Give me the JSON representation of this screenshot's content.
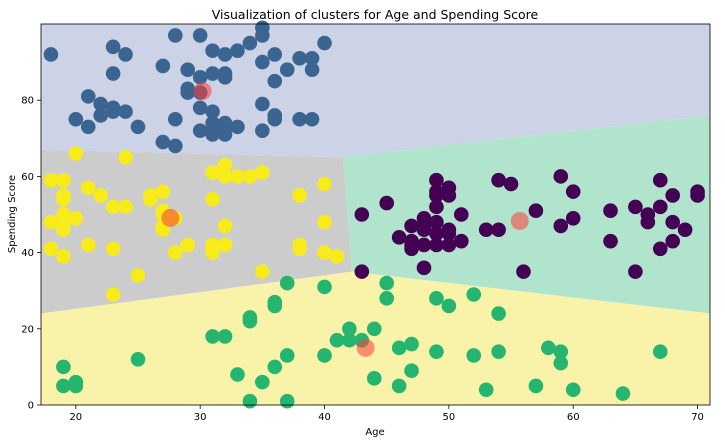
{
  "chart_data": {
    "type": "scatter",
    "title": "Visualization of clusters for Age and Spending Score",
    "xlabel": "Age",
    "ylabel": "Spending Score",
    "xlim": [
      17.2,
      71
    ],
    "ylim": [
      0,
      100
    ],
    "xticks": [
      20,
      30,
      40,
      50,
      60,
      70
    ],
    "yticks": [
      0,
      20,
      40,
      60,
      80
    ],
    "grid": false,
    "legend": "none",
    "colors": {
      "region_blue": "#ccd3e7",
      "region_gray": "#cccccc",
      "region_green": "#b1e4cc",
      "region_yellow": "#f9f3aa",
      "pts_blue": "#3b6590",
      "pts_gray": "#f7ec1a",
      "pts_green": "#26b56e",
      "pts_purple": "#440154",
      "centroid": "#ff3b3b"
    },
    "regions": [
      {
        "cluster": "blue",
        "polygon": [
          [
            17.2,
            100
          ],
          [
            71,
            100
          ],
          [
            71,
            76
          ],
          [
            41.5,
            65
          ],
          [
            17.2,
            67
          ]
        ]
      },
      {
        "cluster": "gray",
        "polygon": [
          [
            17.2,
            67
          ],
          [
            41.5,
            65
          ],
          [
            42.2,
            35
          ],
          [
            17.2,
            24
          ]
        ]
      },
      {
        "cluster": "green",
        "polygon": [
          [
            41.5,
            65
          ],
          [
            71,
            76
          ],
          [
            71,
            24
          ],
          [
            42.2,
            35
          ]
        ]
      },
      {
        "cluster": "yellow",
        "polygon": [
          [
            17.2,
            24
          ],
          [
            42.2,
            35
          ],
          [
            71,
            24
          ],
          [
            71,
            0
          ],
          [
            17.2,
            0
          ]
        ]
      }
    ],
    "series": [
      {
        "cluster": "blue",
        "points": [
          [
            18,
            92
          ],
          [
            23,
            94
          ],
          [
            24,
            92
          ],
          [
            28,
            97
          ],
          [
            30,
            97
          ],
          [
            31,
            93
          ],
          [
            32,
            92
          ],
          [
            33,
            93
          ],
          [
            34,
            95
          ],
          [
            35,
            99
          ],
          [
            35,
            97
          ],
          [
            36,
            92
          ],
          [
            38,
            91
          ],
          [
            39,
            91
          ],
          [
            39,
            88
          ],
          [
            40,
            95
          ],
          [
            27,
            89
          ],
          [
            29,
            88
          ],
          [
            31,
            87
          ],
          [
            32,
            87
          ],
          [
            32,
            86
          ],
          [
            23,
            87
          ],
          [
            30,
            86
          ],
          [
            29,
            83
          ],
          [
            29,
            82
          ],
          [
            30,
            82
          ],
          [
            30,
            78
          ],
          [
            31,
            77
          ],
          [
            35,
            90
          ],
          [
            36,
            85
          ],
          [
            21,
            81
          ],
          [
            22,
            79
          ],
          [
            20,
            75
          ],
          [
            21,
            73
          ],
          [
            22,
            76
          ],
          [
            23,
            77
          ],
          [
            23,
            78
          ],
          [
            24,
            77
          ],
          [
            25,
            73
          ],
          [
            28,
            75
          ],
          [
            30,
            72
          ],
          [
            31,
            74
          ],
          [
            31,
            72
          ],
          [
            32,
            73
          ],
          [
            32,
            74
          ],
          [
            32,
            71
          ],
          [
            33,
            73
          ],
          [
            35,
            79
          ],
          [
            35,
            72
          ],
          [
            36,
            76
          ],
          [
            36,
            75
          ],
          [
            38,
            75
          ],
          [
            39,
            75
          ],
          [
            27,
            69
          ],
          [
            28,
            68
          ],
          [
            37,
            88
          ],
          [
            31,
            71
          ]
        ]
      },
      {
        "cluster": "gray",
        "points": [
          [
            18,
            59
          ],
          [
            19,
            59
          ],
          [
            19,
            55
          ],
          [
            19,
            54
          ],
          [
            18,
            48
          ],
          [
            19,
            50
          ],
          [
            19,
            47
          ],
          [
            19,
            46
          ],
          [
            20,
            49
          ],
          [
            20,
            66
          ],
          [
            18,
            41
          ],
          [
            19,
            39
          ],
          [
            21,
            42
          ],
          [
            21,
            57
          ],
          [
            22,
            55
          ],
          [
            23,
            52
          ],
          [
            23,
            41
          ],
          [
            23,
            29
          ],
          [
            24,
            52
          ],
          [
            24,
            65
          ],
          [
            25,
            34
          ],
          [
            26,
            54
          ],
          [
            26,
            55
          ],
          [
            27,
            56
          ],
          [
            27,
            51
          ],
          [
            27,
            50
          ],
          [
            27,
            47
          ],
          [
            27,
            46
          ],
          [
            28,
            40
          ],
          [
            29,
            42
          ],
          [
            31,
            61
          ],
          [
            31,
            54
          ],
          [
            31,
            42
          ],
          [
            31,
            41
          ],
          [
            31,
            40
          ],
          [
            32,
            42
          ],
          [
            32,
            47
          ],
          [
            32,
            63
          ],
          [
            32,
            60
          ],
          [
            33,
            60
          ],
          [
            34,
            60
          ],
          [
            35,
            61
          ],
          [
            35,
            35
          ],
          [
            38,
            55
          ],
          [
            38,
            42
          ],
          [
            38,
            41
          ],
          [
            40,
            58
          ],
          [
            40,
            48
          ],
          [
            40,
            40
          ],
          [
            41,
            39
          ],
          [
            28,
            49
          ]
        ]
      },
      {
        "cluster": "purple",
        "points": [
          [
            43,
            50
          ],
          [
            43,
            35
          ],
          [
            45,
            53
          ],
          [
            46,
            44
          ],
          [
            47,
            47
          ],
          [
            47,
            43
          ],
          [
            47,
            42
          ],
          [
            47,
            41
          ],
          [
            48,
            46
          ],
          [
            48,
            47
          ],
          [
            48,
            49
          ],
          [
            48,
            42
          ],
          [
            48,
            36
          ],
          [
            49,
            59
          ],
          [
            49,
            56
          ],
          [
            49,
            55
          ],
          [
            49,
            52
          ],
          [
            49,
            48
          ],
          [
            49,
            45
          ],
          [
            49,
            42
          ],
          [
            50,
            57
          ],
          [
            50,
            55
          ],
          [
            50,
            46
          ],
          [
            50,
            45
          ],
          [
            50,
            42
          ],
          [
            51,
            50
          ],
          [
            51,
            43
          ],
          [
            53,
            46
          ],
          [
            54,
            46
          ],
          [
            54,
            59
          ],
          [
            55,
            58
          ],
          [
            56,
            35
          ],
          [
            57,
            51
          ],
          [
            59,
            60
          ],
          [
            59,
            47
          ],
          [
            60,
            49
          ],
          [
            60,
            56
          ],
          [
            63,
            51
          ],
          [
            63,
            43
          ],
          [
            65,
            52
          ],
          [
            65,
            35
          ],
          [
            66,
            50
          ],
          [
            66,
            48
          ],
          [
            67,
            59
          ],
          [
            67,
            52
          ],
          [
            67,
            41
          ],
          [
            68,
            55
          ],
          [
            68,
            48
          ],
          [
            68,
            43
          ],
          [
            69,
            46
          ],
          [
            70,
            56
          ],
          [
            70,
            55
          ]
        ]
      },
      {
        "cluster": "green",
        "points": [
          [
            19,
            10
          ],
          [
            19,
            5
          ],
          [
            20,
            6
          ],
          [
            20,
            5
          ],
          [
            25,
            12
          ],
          [
            31,
            18
          ],
          [
            32,
            18
          ],
          [
            33,
            8
          ],
          [
            34,
            23
          ],
          [
            34,
            22
          ],
          [
            34,
            1
          ],
          [
            35,
            6
          ],
          [
            36,
            10
          ],
          [
            36,
            27
          ],
          [
            36,
            26
          ],
          [
            37,
            32
          ],
          [
            37,
            13
          ],
          [
            37,
            1
          ],
          [
            40,
            31
          ],
          [
            40,
            13
          ],
          [
            41,
            17
          ],
          [
            42,
            20
          ],
          [
            42,
            17
          ],
          [
            43,
            17
          ],
          [
            44,
            20
          ],
          [
            44,
            7
          ],
          [
            45,
            32
          ],
          [
            45,
            28
          ],
          [
            46,
            15
          ],
          [
            46,
            5
          ],
          [
            47,
            16
          ],
          [
            47,
            9
          ],
          [
            49,
            28
          ],
          [
            49,
            14
          ],
          [
            50,
            26
          ],
          [
            52,
            29
          ],
          [
            52,
            13
          ],
          [
            53,
            4
          ],
          [
            54,
            24
          ],
          [
            54,
            14
          ],
          [
            57,
            5
          ],
          [
            58,
            15
          ],
          [
            59,
            14
          ],
          [
            59,
            11
          ],
          [
            60,
            4
          ],
          [
            64,
            3
          ],
          [
            67,
            14
          ]
        ]
      }
    ],
    "centroids": [
      {
        "cluster": "blue",
        "x": 30.2,
        "y": 82.4
      },
      {
        "cluster": "gray",
        "x": 27.6,
        "y": 49.1
      },
      {
        "cluster": "purple",
        "x": 55.7,
        "y": 48.3
      },
      {
        "cluster": "green",
        "x": 43.3,
        "y": 15.0
      }
    ]
  }
}
